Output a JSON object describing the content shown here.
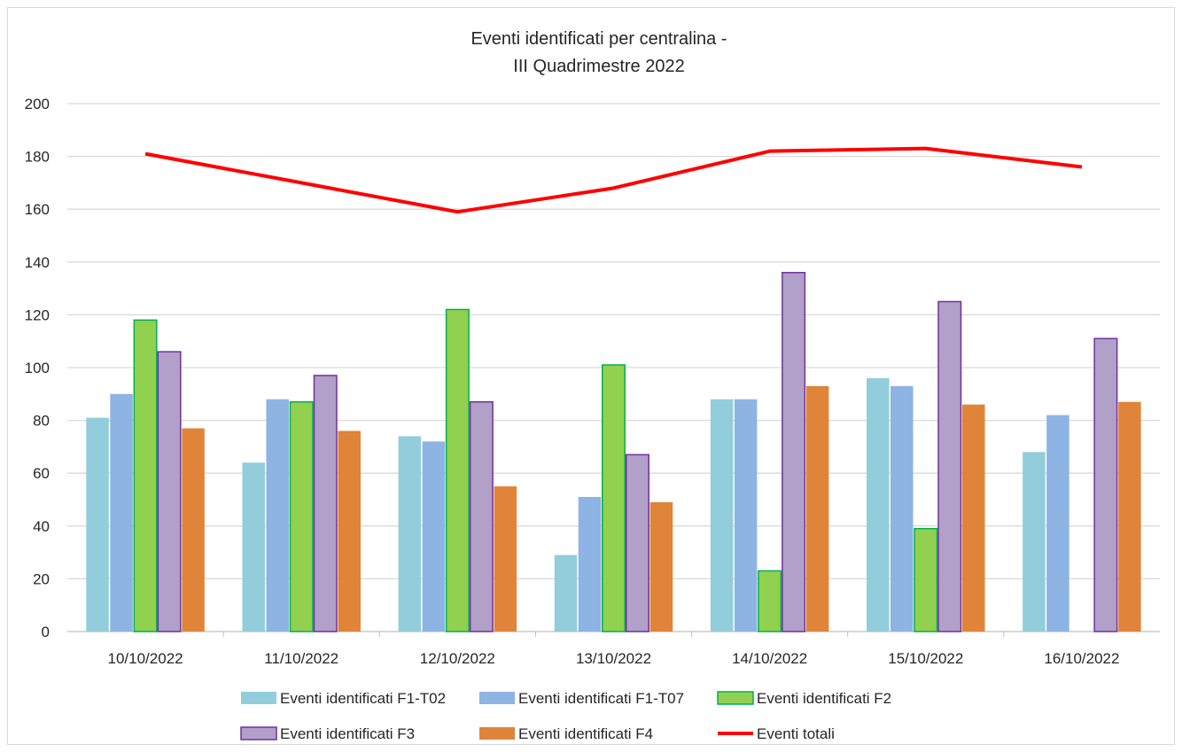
{
  "chart_data": {
    "type": "bar",
    "title_line1": "Eventi identificati per centralina -",
    "title_line2": "III Quadrimestre 2022",
    "categories": [
      "10/10/2022",
      "11/10/2022",
      "12/10/2022",
      "13/10/2022",
      "14/10/2022",
      "15/10/2022",
      "16/10/2022"
    ],
    "ylim": [
      0,
      200
    ],
    "yticks": [
      "0",
      "20",
      "40",
      "60",
      "80",
      "100",
      "120",
      "140",
      "160",
      "180",
      "200"
    ],
    "grid": true,
    "legend_position": "bottom",
    "series": [
      {
        "name": "Eventi identificati F1-T02",
        "type": "bar",
        "color": "#92cddc",
        "values": [
          81,
          64,
          74,
          29,
          88,
          96,
          68
        ]
      },
      {
        "name": "Eventi identificati F1-T07",
        "type": "bar",
        "color": "#8db4e2",
        "values": [
          90,
          88,
          72,
          51,
          88,
          93,
          82
        ]
      },
      {
        "name": "Eventi identificati F2",
        "type": "bar",
        "color": "#92d050",
        "border": "#00b050",
        "values": [
          118,
          87,
          122,
          101,
          23,
          39,
          null
        ]
      },
      {
        "name": "Eventi identificati F3",
        "type": "bar",
        "color": "#b1a0c7",
        "border": "#7030a0",
        "values": [
          106,
          97,
          87,
          67,
          136,
          125,
          111
        ]
      },
      {
        "name": "Eventi identificati F4",
        "type": "bar",
        "color": "#e0843a",
        "values": [
          77,
          76,
          55,
          49,
          93,
          86,
          87
        ]
      },
      {
        "name": "Eventi totali",
        "type": "line",
        "color": "#ff0000",
        "values": [
          181,
          170,
          159,
          168,
          182,
          183,
          176
        ]
      }
    ]
  }
}
